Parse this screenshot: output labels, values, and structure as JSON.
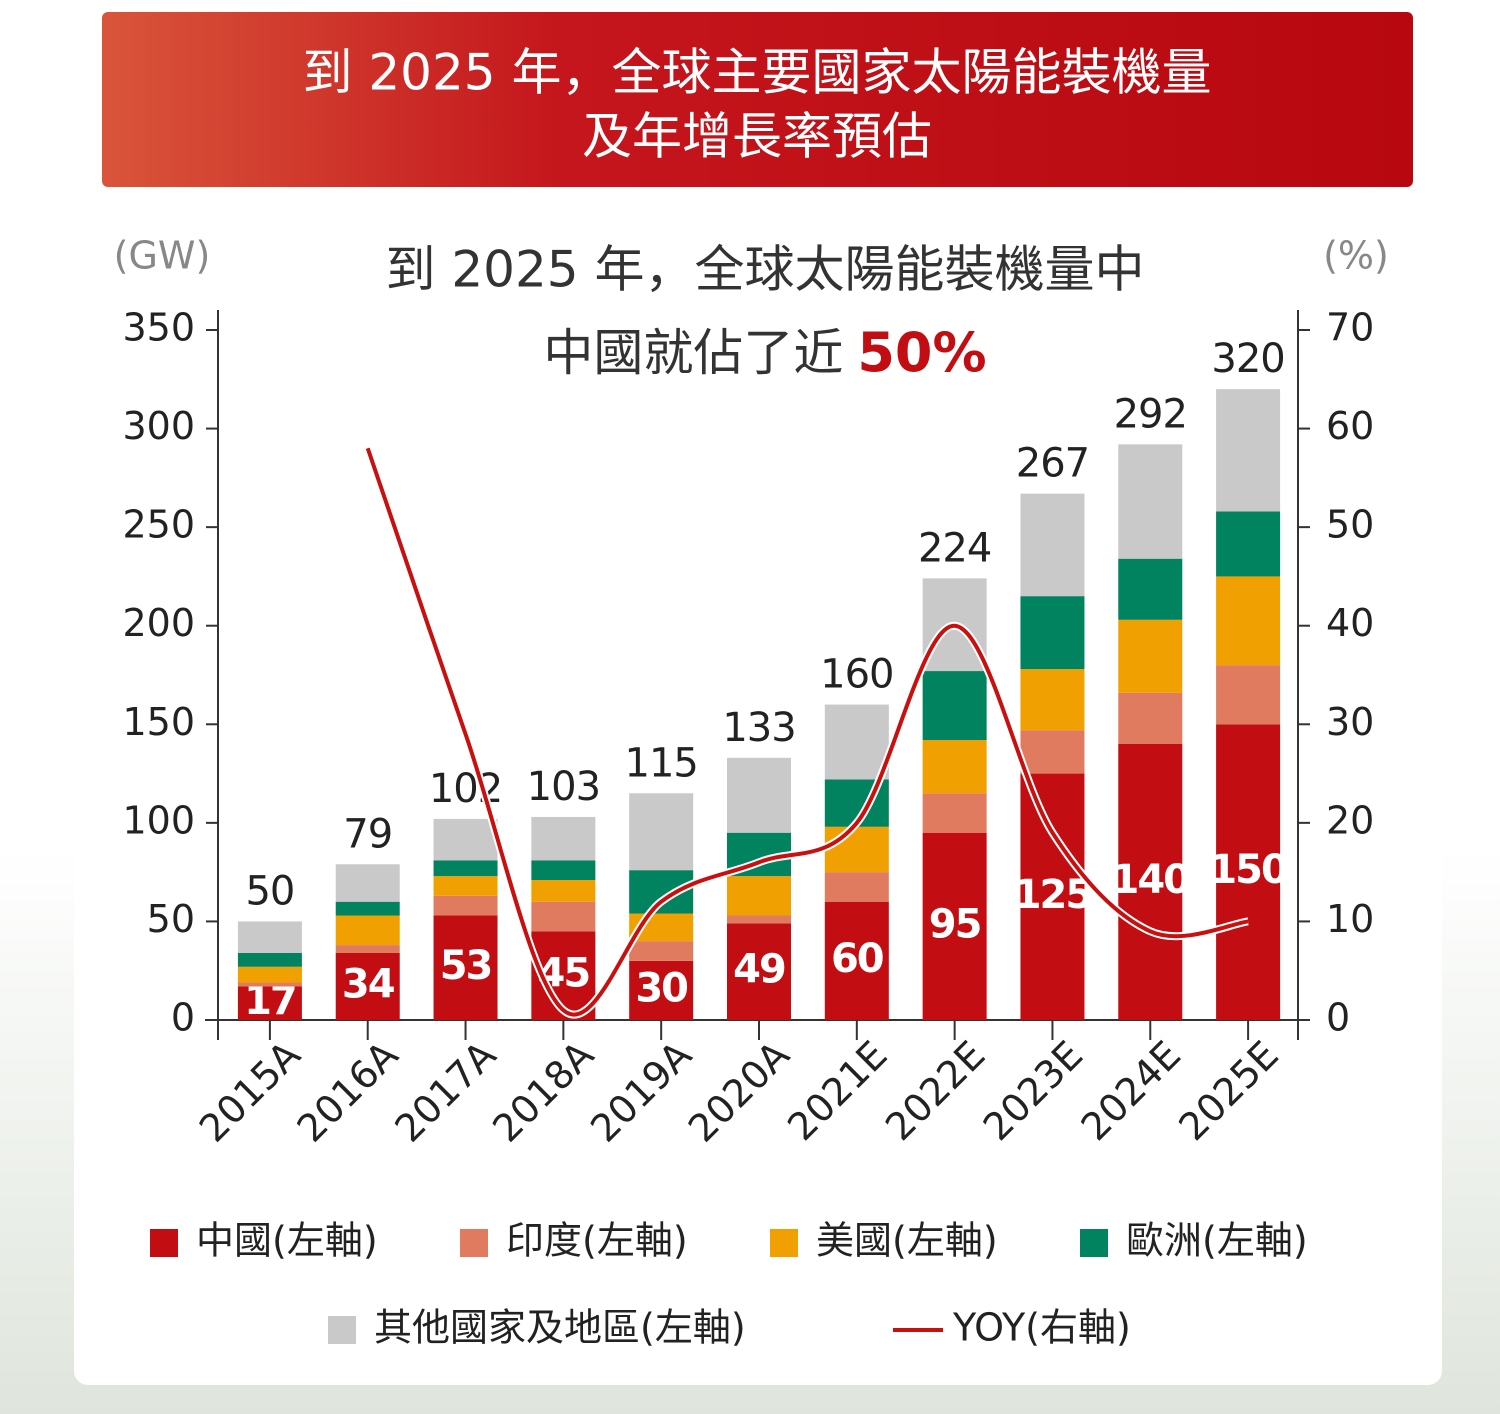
{
  "chart_data": {
    "type": "stacked_bar_line",
    "title": [
      "到 2025 年，全球主要國家太陽能裝機量",
      "及年增長率預估"
    ],
    "subtitle": [
      "到 2025 年，全球太陽能裝機量中",
      "中國就佔了近"
    ],
    "subtitle_highlight": "50%",
    "ylabel": "(GW)",
    "y2label": "(%)",
    "categories": [
      "2015A",
      "2016A",
      "2017A",
      "2018A",
      "2019A",
      "2020A",
      "2021E",
      "2022E",
      "2023E",
      "2024E",
      "2025E"
    ],
    "totals": [
      50,
      79,
      102,
      103,
      115,
      133,
      160,
      224,
      267,
      292,
      320
    ],
    "series": [
      {
        "name": "中國(左軸)",
        "color": "#c20e12",
        "values": [
          17,
          34,
          53,
          45,
          30,
          49,
          60,
          95,
          125,
          140,
          150
        ]
      },
      {
        "name": "印度(左軸)",
        "color": "#e07b5f",
        "values": [
          2,
          4,
          10,
          15,
          10,
          4,
          15,
          20,
          22,
          26,
          30
        ]
      },
      {
        "name": "美國(左軸)",
        "color": "#f0a000",
        "values": [
          8,
          15,
          10,
          11,
          14,
          20,
          23,
          27,
          31,
          37,
          45
        ]
      },
      {
        "name": "歐洲(左軸)",
        "color": "#00835e",
        "values": [
          7,
          7,
          8,
          10,
          22,
          22,
          24,
          35,
          37,
          31,
          33
        ]
      },
      {
        "name": "其他國家及地區(左軸)",
        "color": "#c9c9c9",
        "values": [
          16,
          19,
          21,
          22,
          39,
          38,
          38,
          47,
          52,
          58,
          62
        ]
      },
      {
        "name": "YOY(右軸)",
        "color": "#c8100f",
        "axis": "y2",
        "type": "line",
        "values": [
          null,
          58,
          29,
          1,
          12,
          16,
          20,
          40,
          19,
          9,
          10
        ]
      }
    ],
    "ylim": [
      0,
      350
    ],
    "yticks": [
      0,
      50,
      100,
      150,
      200,
      250,
      300,
      350
    ],
    "y2lim": [
      0,
      70
    ],
    "y2ticks": [
      0,
      10,
      20,
      30,
      40,
      50,
      60,
      70
    ]
  }
}
